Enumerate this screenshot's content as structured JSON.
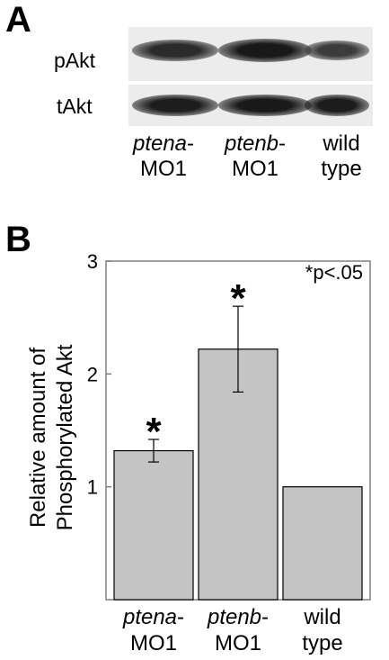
{
  "figure": {
    "panel_a_letter": "A",
    "panel_b_letter": "B",
    "blot": {
      "rows": [
        {
          "label": "pAkt",
          "band_intensities": [
            0.75,
            0.95,
            0.55
          ]
        },
        {
          "label": "tAkt",
          "band_intensities": [
            0.9,
            0.95,
            0.92
          ]
        }
      ],
      "lanes": [
        {
          "line1_italic": "ptena",
          "line1_suffix": "-",
          "line2": "MO1"
        },
        {
          "line1_italic": "ptenb",
          "line1_suffix": "-",
          "line2": "MO1"
        },
        {
          "line1_italic": "",
          "line1_suffix": "wild",
          "line2": "type"
        }
      ]
    }
  },
  "chart_data": {
    "type": "bar",
    "categories": [
      {
        "italic": "ptena",
        "suffix": "-",
        "line2": "MO1"
      },
      {
        "italic": "ptenb",
        "suffix": "-",
        "line2": "MO1"
      },
      {
        "italic": "",
        "suffix": "wild",
        "line2": "type"
      }
    ],
    "values": [
      1.32,
      2.22,
      1.0
    ],
    "errors": [
      0.1,
      0.38,
      0
    ],
    "significant": [
      true,
      true,
      false
    ],
    "star_symbol": "*",
    "ylabel_line1": "Relative amount of",
    "ylabel_line2": "Phosphorylated Akt",
    "ylim": [
      0,
      3
    ],
    "yticks": [
      1,
      2,
      3
    ],
    "note": "*p<.05",
    "bar_color": "#c4c4c4"
  }
}
